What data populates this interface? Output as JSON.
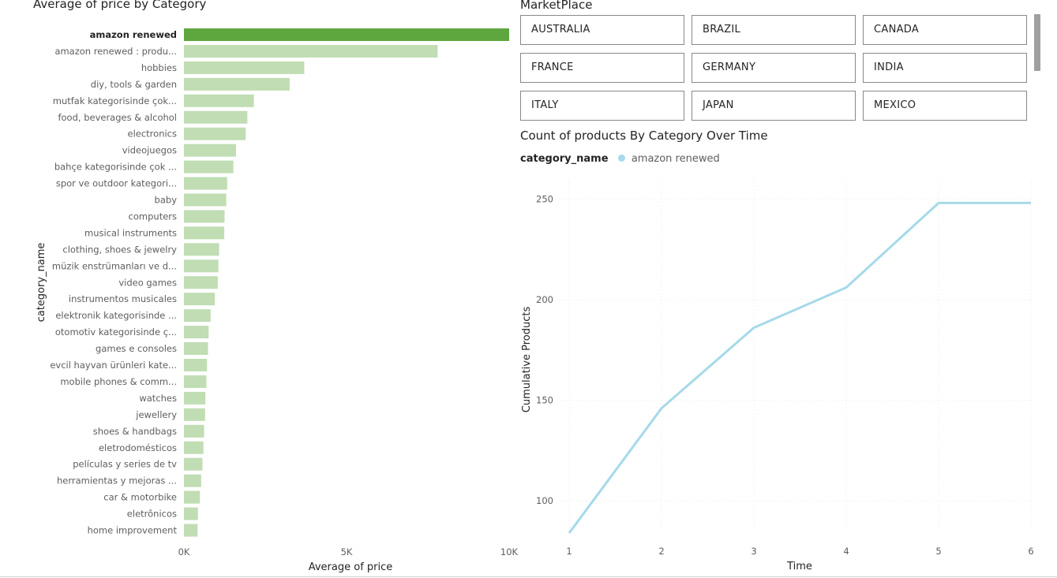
{
  "bar_chart": {
    "title": "Average of price by Category"
  },
  "marketplace": {
    "title": "MarketPlace",
    "options": [
      "AUSTRALIA",
      "BRAZIL",
      "CANADA",
      "FRANCE",
      "GERMANY",
      "INDIA",
      "ITALY",
      "JAPAN",
      "MEXICO"
    ]
  },
  "line_chart": {
    "title": "Count of products By Category Over Time",
    "legend_title": "category_name"
  },
  "colors": {
    "bar_highlight": "#5ea73f",
    "bar_normal": "#c0ddb3",
    "line": "#a6d9ea",
    "tile_border": "#8a8886"
  },
  "chart_data": [
    {
      "type": "bar",
      "orientation": "horizontal",
      "title": "Average of price by Category",
      "xlabel": "Average of price",
      "ylabel": "category_name",
      "xlim": [
        0,
        10000
      ],
      "x_ticks": [
        "0K",
        "5K",
        "10K"
      ],
      "highlighted_category": "amazon renewed",
      "categories": [
        "amazon renewed",
        "amazon renewed : produ...",
        "hobbies",
        "diy, tools & garden",
        "mutfak kategorisinde çok...",
        "food, beverages & alcohol",
        "electronics",
        "videojuegos",
        "bahçe kategorisinde çok ...",
        "spor ve outdoor kategori...",
        "baby",
        "computers",
        "musical instruments",
        "clothing, shoes & jewelry",
        "müzik enstrümanları ve d...",
        "video games",
        "instrumentos musicales",
        "elektronik kategorisinde ...",
        "otomotiv kategorisinde ç...",
        "games e consoles",
        "evcil hayvan ürünleri kate...",
        "mobile phones & comm...",
        "watches",
        "jewellery",
        "shoes & handbags",
        "eletrodomésticos",
        "películas y series de tv",
        "herramientas y mejoras ...",
        "car & motorbike",
        "eletrônicos",
        "home improvement"
      ],
      "values": [
        10000,
        7800,
        3700,
        3250,
        2150,
        1950,
        1900,
        1600,
        1520,
        1330,
        1300,
        1250,
        1240,
        1080,
        1060,
        1040,
        950,
        820,
        760,
        740,
        710,
        690,
        660,
        650,
        620,
        600,
        570,
        530,
        490,
        430,
        420
      ]
    },
    {
      "type": "line",
      "title": "Count of products By Category Over Time",
      "xlabel": "Time",
      "ylabel": "Cumulative Products",
      "x_ticks": [
        1,
        2,
        3,
        4,
        5,
        6
      ],
      "y_ticks": [
        100,
        150,
        200,
        250
      ],
      "xlim": [
        1,
        6
      ],
      "ylim": [
        84,
        265
      ],
      "legend_title": "category_name",
      "series": [
        {
          "name": "amazon renewed",
          "x": [
            1,
            2,
            3,
            4,
            5,
            6
          ],
          "values": [
            84,
            146,
            186,
            206,
            248,
            248
          ]
        }
      ]
    }
  ]
}
